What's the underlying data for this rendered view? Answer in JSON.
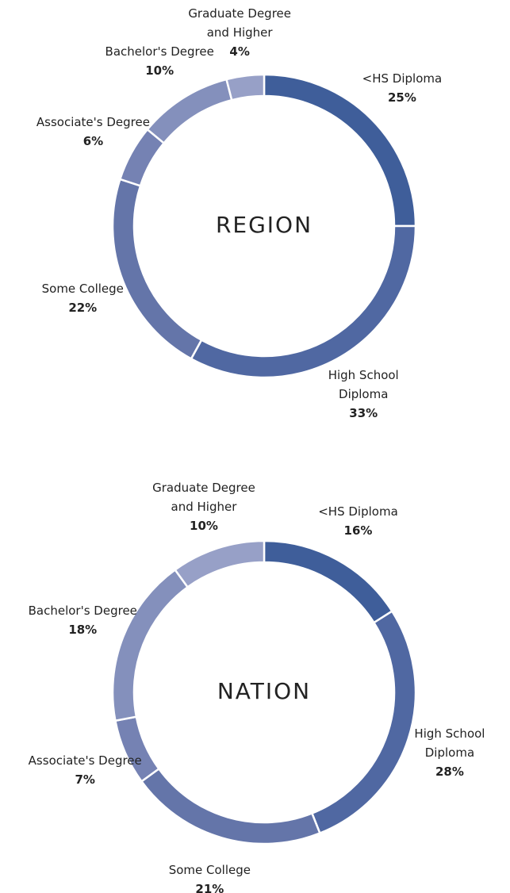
{
  "chart_data": [
    {
      "type": "donut",
      "title": "REGION",
      "categories": [
        "<HS Diploma",
        "High School Diploma",
        "Some College",
        "Associate's Degree",
        "Bachelor's Degree",
        "Graduate Degree and Higher"
      ],
      "values": [
        25,
        33,
        22,
        6,
        10,
        4
      ],
      "value_labels": [
        "25%",
        "33%",
        "22%",
        "6%",
        "10%",
        "4%"
      ],
      "colors": [
        "#3f5e9a",
        "#5068a2",
        "#6475a9",
        "#7582b3",
        "#8490bc",
        "#97a0c7"
      ]
    },
    {
      "type": "donut",
      "title": "NATION",
      "categories": [
        "<HS Diploma",
        "High School Diploma",
        "Some College",
        "Associate's Degree",
        "Bachelor's Degree",
        "Graduate Degree and Higher"
      ],
      "values": [
        16,
        28,
        21,
        7,
        18,
        10
      ],
      "value_labels": [
        "16%",
        "28%",
        "21%",
        "7%",
        "18%",
        "10%"
      ],
      "colors": [
        "#3f5e9a",
        "#5068a2",
        "#6475a9",
        "#7582b3",
        "#8490bc",
        "#97a0c7"
      ]
    }
  ]
}
